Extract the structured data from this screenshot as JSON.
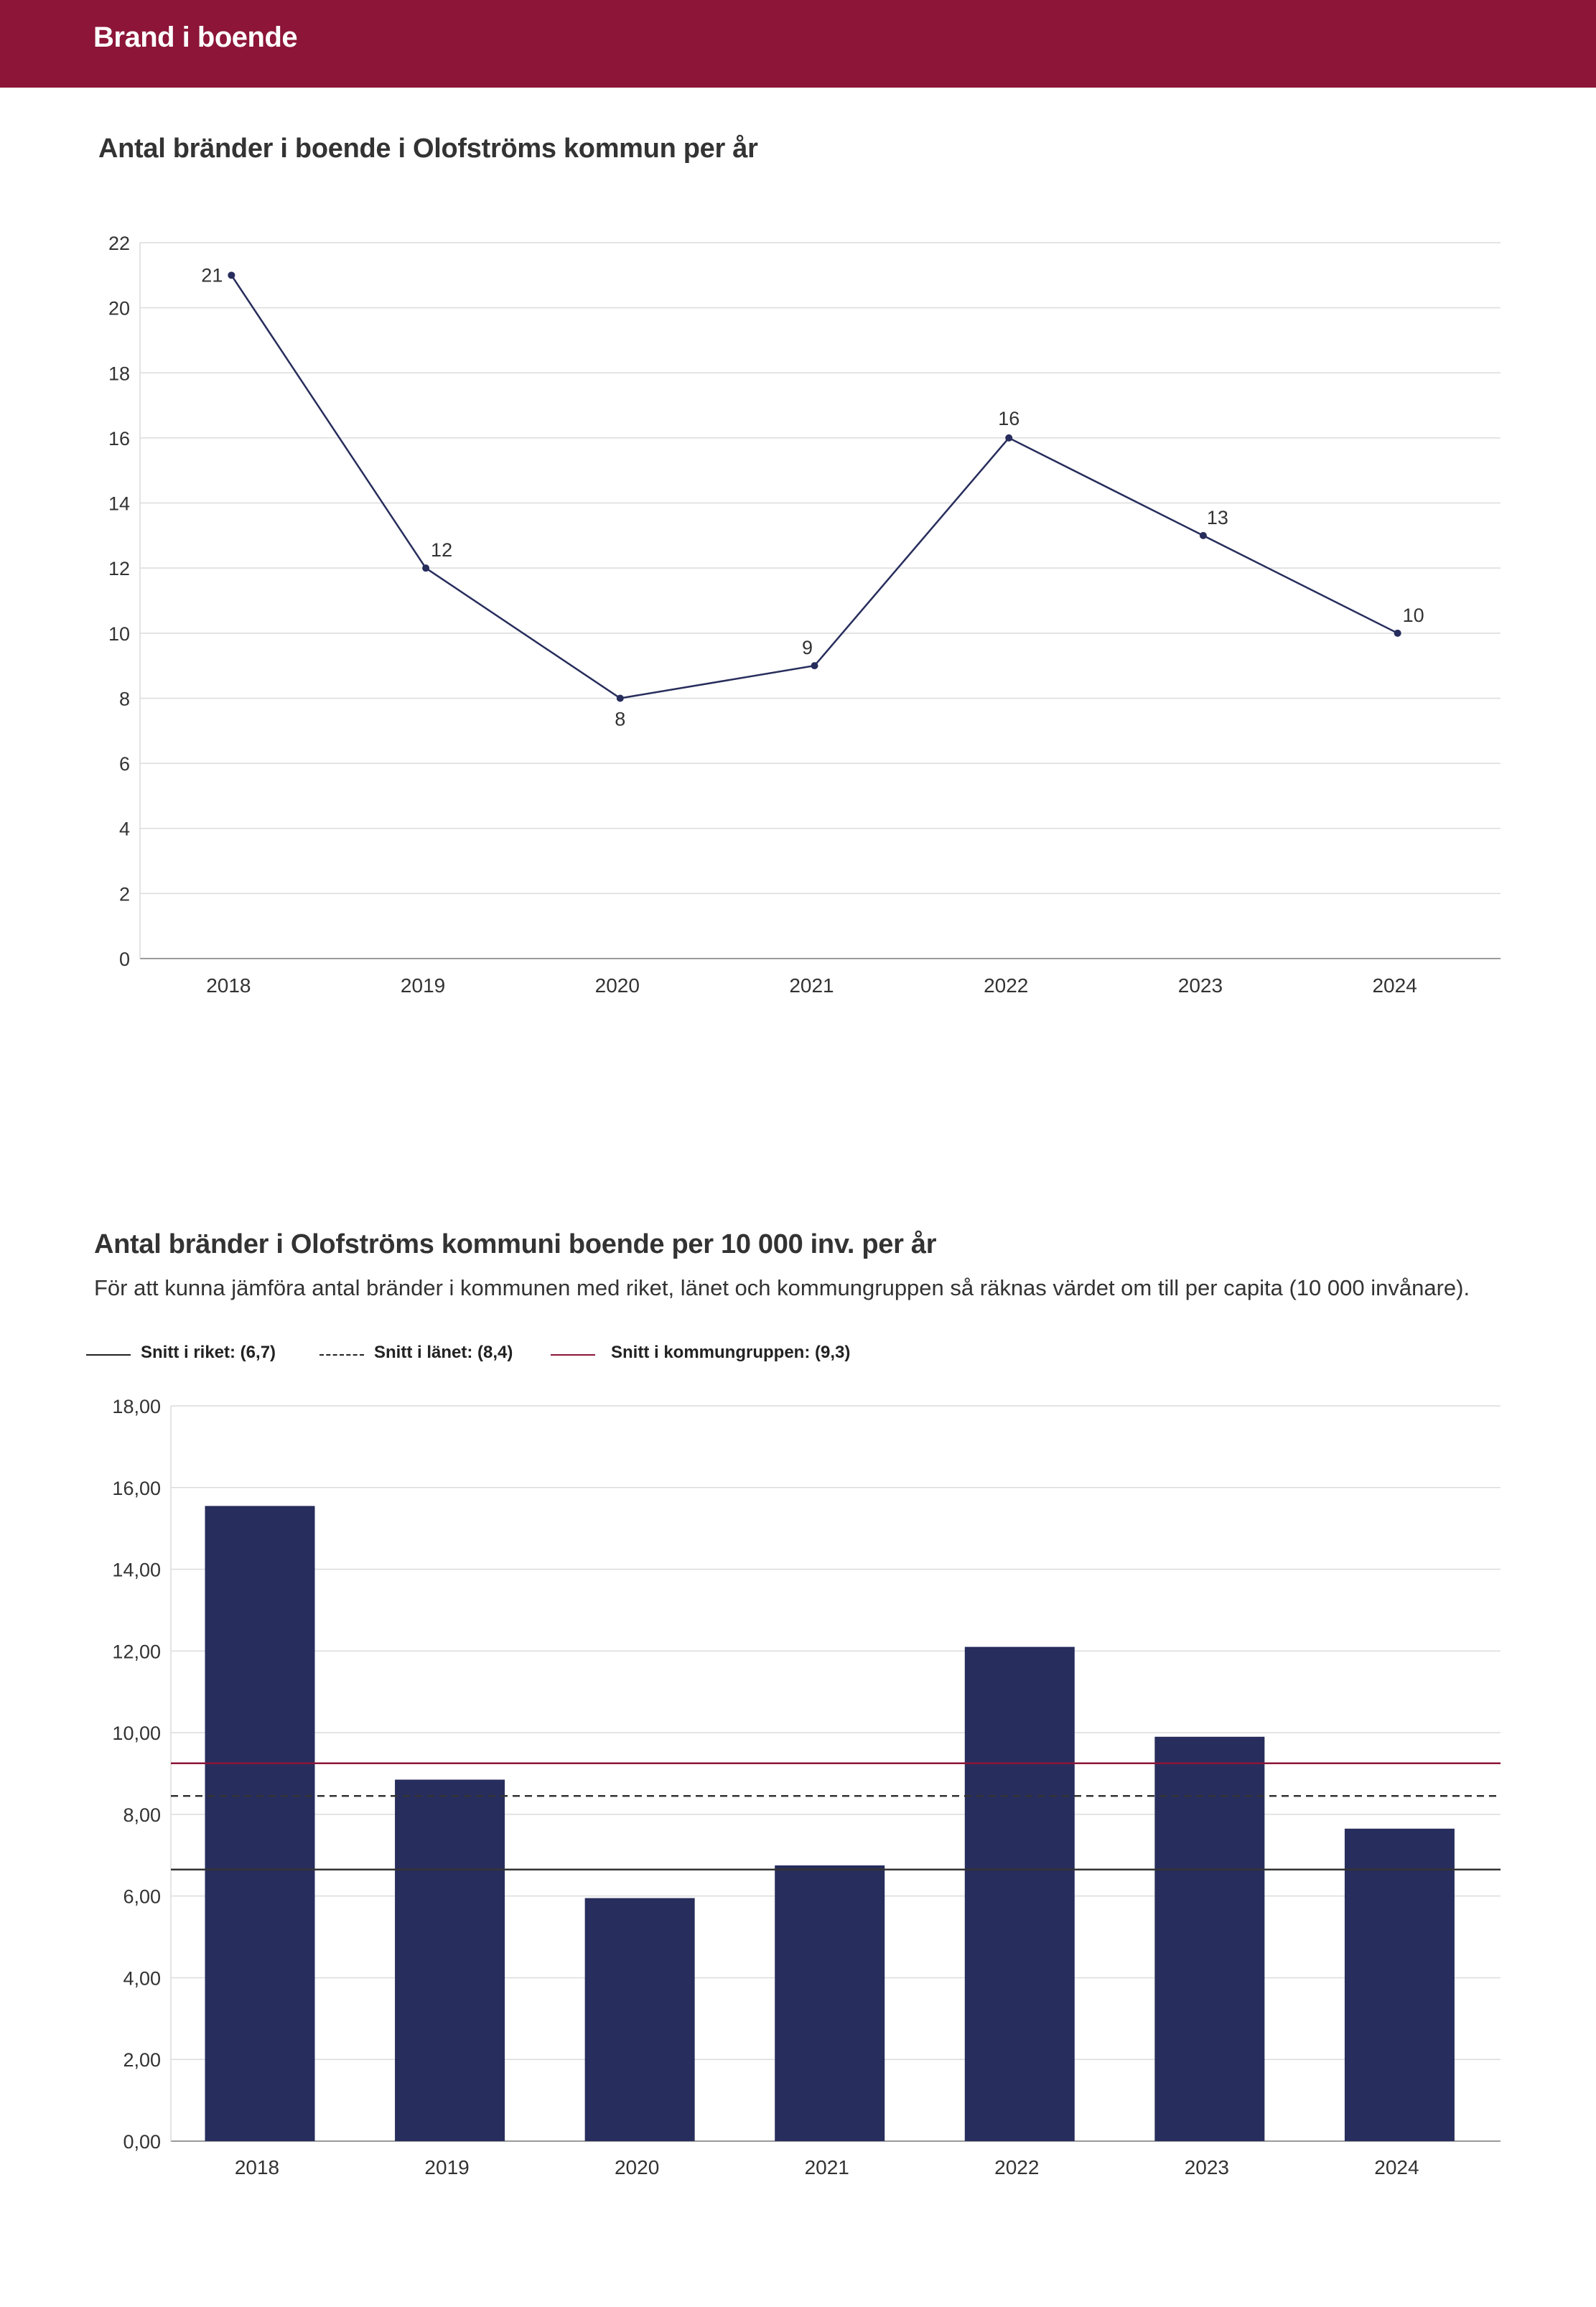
{
  "header": {
    "title": "Brand i boende"
  },
  "colors": {
    "header_bg": "#8c1538",
    "series": "#272d5c",
    "riket": "#333333",
    "lanet": "#333333",
    "kommungrupp": "#8c1538"
  },
  "chart_data": [
    {
      "type": "line",
      "title": "Antal bränder i boende i Olofströms kommun per år",
      "categories": [
        "2018",
        "2019",
        "2020",
        "2021",
        "2022",
        "2023",
        "2024"
      ],
      "values": [
        21,
        12,
        8,
        9,
        16,
        13,
        10
      ],
      "data_labels": [
        "21",
        "12",
        "8",
        "9",
        "16",
        "13",
        "10"
      ],
      "ylim": [
        0,
        22
      ],
      "yticks": [
        "0",
        "2",
        "4",
        "6",
        "8",
        "10",
        "12",
        "14",
        "16",
        "18",
        "20",
        "22"
      ],
      "grid": true
    },
    {
      "type": "bar",
      "title": "Antal bränder i Olofströms kommuni boende per 10 000 inv. per år",
      "subtitle": "För att kunna jämföra antal bränder i kommunen med riket, länet och kommungruppen så räknas värdet om till per capita (10 000 invånare).",
      "categories": [
        "2018",
        "2019",
        "2020",
        "2021",
        "2022",
        "2023",
        "2024"
      ],
      "values": [
        15.55,
        8.85,
        5.95,
        6.75,
        12.1,
        9.9,
        7.65
      ],
      "ylim": [
        0,
        18
      ],
      "yticks": [
        "0,00",
        "2,00",
        "4,00",
        "6,00",
        "8,00",
        "10,00",
        "12,00",
        "14,00",
        "16,00",
        "18,00"
      ],
      "reference_lines": [
        {
          "label": "Snitt i riket: (6,7)",
          "value": 6.65,
          "style": "solid",
          "color": "#333333"
        },
        {
          "label": "Snitt i länet: (8,4)",
          "value": 8.45,
          "style": "dashed",
          "color": "#333333"
        },
        {
          "label": "Snitt i kommungruppen: (9,3)",
          "value": 9.25,
          "style": "solid",
          "color": "#8c1538"
        }
      ],
      "grid": true
    }
  ]
}
